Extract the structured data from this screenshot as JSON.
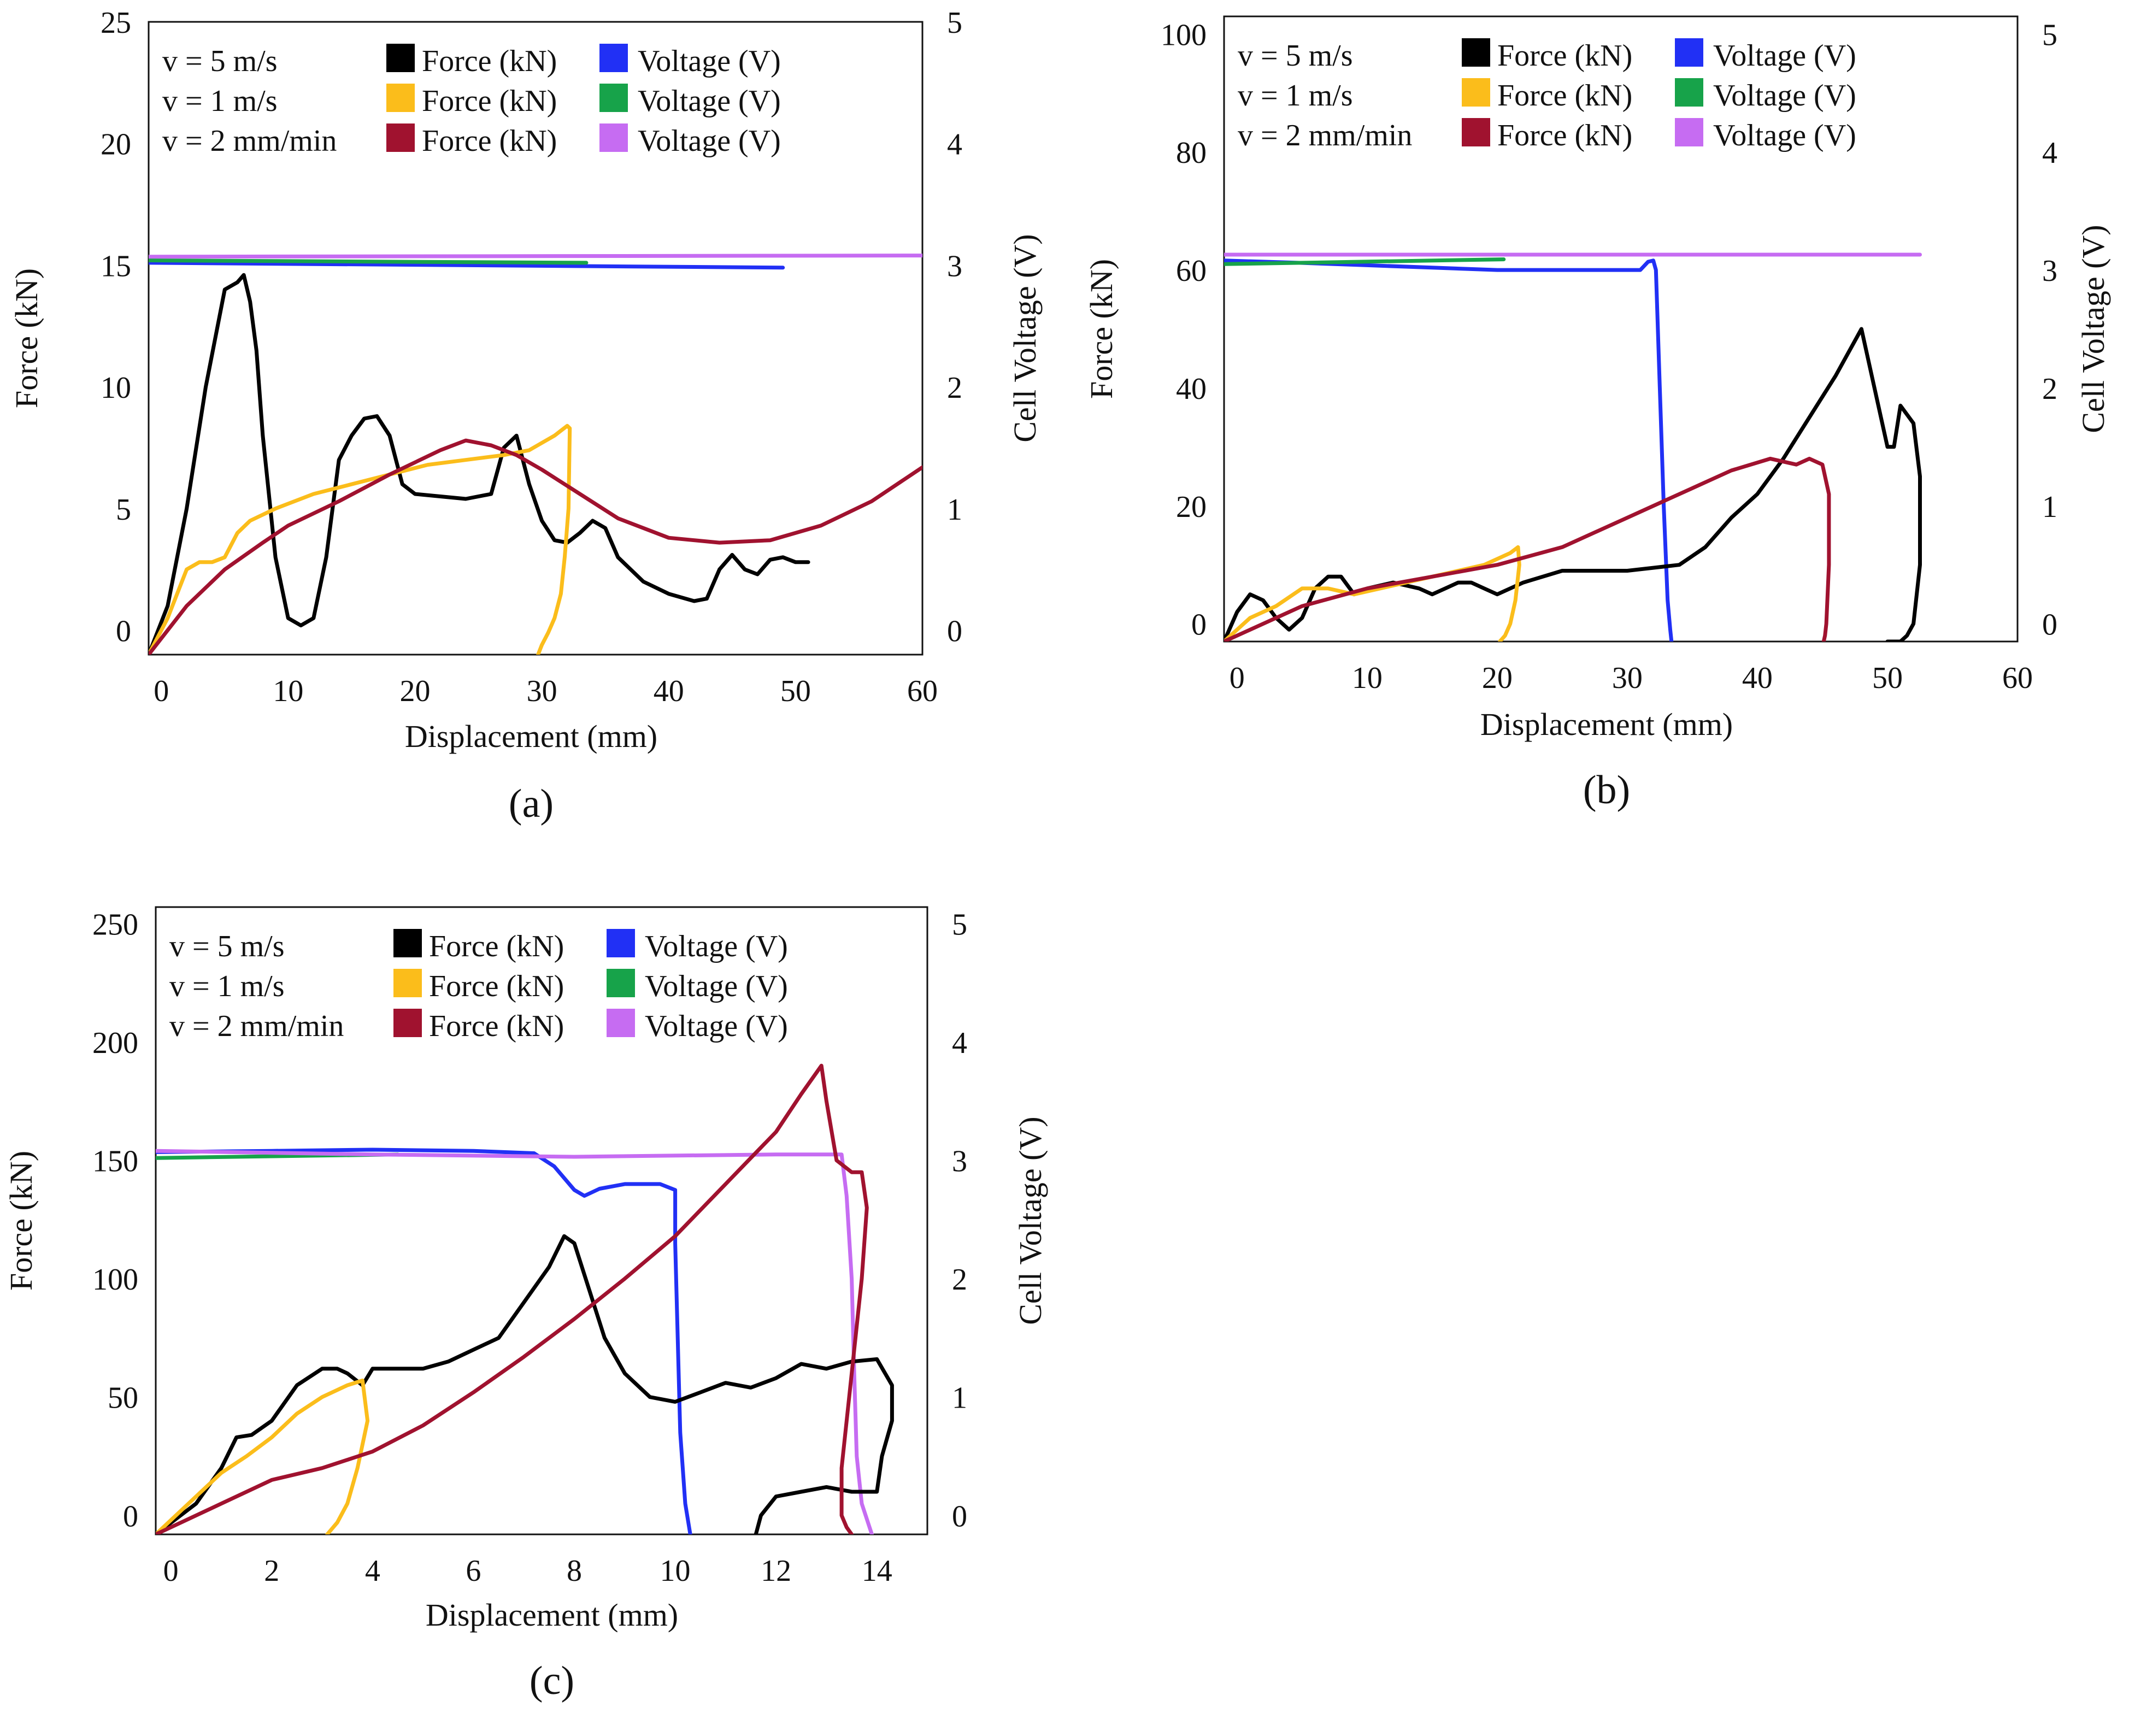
{
  "legend_labels": {
    "speeds": [
      "v = 5 m/s",
      "v = 1 m/s",
      "v = 2 mm/min"
    ],
    "force": "Force (kN)",
    "voltage": "Voltage (V)"
  },
  "colors": {
    "force": [
      "#000000",
      "#fbbd1b",
      "#a0122f"
    ],
    "voltage": [
      "#2130f5",
      "#17a34a",
      "#c66cf2"
    ]
  },
  "chart_data": [
    {
      "type": "line",
      "panel_label": "(a)",
      "xlabel": "Displacement (mm)",
      "ylabel": "Force (kN)",
      "y2label": "Cell Voltage (V)",
      "xlim": [
        -1,
        60
      ],
      "ylim": [
        -1,
        25
      ],
      "y2lim": [
        -0.2,
        5
      ],
      "xticks": [
        0,
        10,
        20,
        30,
        40,
        50,
        60
      ],
      "yticks": [
        0,
        5,
        10,
        15,
        20,
        25
      ],
      "y2ticks": [
        0,
        1,
        2,
        3,
        4,
        5
      ],
      "series": [
        {
          "name": "v = 5 m/s Force (kN)",
          "axis": "left",
          "color": "#000000",
          "x": [
            -1,
            0.5,
            2,
            3.5,
            5,
            6,
            6.5,
            7,
            7.5,
            8,
            9,
            10,
            11,
            12,
            13,
            14,
            15,
            16,
            17,
            18,
            19,
            20,
            22,
            24,
            26,
            27,
            28,
            29,
            30,
            31,
            32,
            33,
            34,
            35,
            36,
            38,
            40,
            42,
            43,
            44,
            45,
            46,
            47,
            48,
            49,
            50,
            51
          ],
          "y": [
            -1,
            1,
            5,
            10,
            14,
            14.3,
            14.6,
            13.5,
            11.5,
            8,
            3,
            0.5,
            0.2,
            0.5,
            3,
            7,
            8,
            8.7,
            8.8,
            8,
            6,
            5.6,
            5.5,
            5.4,
            5.6,
            7.5,
            8,
            6,
            4.5,
            3.7,
            3.6,
            4,
            4.5,
            4.2,
            3,
            2,
            1.5,
            1.2,
            1.3,
            2.5,
            3.1,
            2.5,
            2.3,
            2.9,
            3,
            2.8,
            2.8
          ]
        },
        {
          "name": "v = 1 m/s Force (kN)",
          "axis": "left",
          "color": "#fbbd1b",
          "x": [
            -1,
            0.5,
            2,
            3,
            4,
            5,
            6,
            7,
            9,
            12,
            15,
            18,
            21,
            24,
            27,
            29,
            30,
            31,
            31.5,
            32,
            32.2,
            32.1,
            31.8,
            31.5,
            31,
            30.5,
            30,
            29.7
          ],
          "y": [
            -1,
            0.5,
            2.5,
            2.8,
            2.8,
            3,
            4,
            4.5,
            5,
            5.6,
            6,
            6.4,
            6.8,
            7,
            7.2,
            7.4,
            7.7,
            8,
            8.2,
            8.4,
            8.3,
            5,
            3,
            1.5,
            0.5,
            -0.1,
            -0.6,
            -1
          ]
        },
        {
          "name": "v = 2 mm/min Force (kN)",
          "axis": "left",
          "color": "#a0122f",
          "x": [
            -1,
            2,
            5,
            8,
            10,
            14,
            18,
            22,
            24,
            26,
            28,
            30,
            33,
            36,
            40,
            44,
            48,
            52,
            56,
            60
          ],
          "y": [
            -1,
            1,
            2.5,
            3.6,
            4.3,
            5.3,
            6.4,
            7.4,
            7.8,
            7.6,
            7.2,
            6.6,
            5.6,
            4.6,
            3.8,
            3.6,
            3.7,
            4.3,
            5.3,
            6.7
          ]
        },
        {
          "name": "v = 5 m/s Voltage (V)",
          "axis": "right",
          "color": "#2130f5",
          "x": [
            -1,
            49
          ],
          "y": [
            3.02,
            2.98
          ]
        },
        {
          "name": "v = 1 m/s Voltage (V)",
          "axis": "right",
          "color": "#17a34a",
          "x": [
            -1,
            33.5
          ],
          "y": [
            3.04,
            3.02
          ]
        },
        {
          "name": "v = 2 mm/min Voltage (V)",
          "axis": "right",
          "color": "#c66cf2",
          "x": [
            -1,
            60
          ],
          "y": [
            3.07,
            3.08
          ]
        }
      ]
    },
    {
      "type": "line",
      "panel_label": "(b)",
      "xlabel": "Displacement (mm)",
      "ylabel": "Force (kN)",
      "y2label": "Cell Voltage (V)",
      "xlim": [
        -1,
        60
      ],
      "ylim": [
        -3,
        103
      ],
      "y2lim": [
        -0.15,
        5.15
      ],
      "xticks": [
        0,
        10,
        20,
        30,
        40,
        50,
        60
      ],
      "yticks": [
        0,
        20,
        40,
        60,
        80,
        100
      ],
      "y2ticks": [
        0,
        1,
        2,
        3,
        4,
        5
      ],
      "series": [
        {
          "name": "v = 5 m/s Force (kN)",
          "axis": "left",
          "color": "#000000",
          "x": [
            -1,
            0,
            1,
            2,
            3,
            4,
            5,
            6,
            7,
            8,
            9,
            10,
            12,
            14,
            15,
            16,
            17,
            18,
            19,
            20,
            22,
            25,
            28,
            30,
            32,
            34,
            36,
            38,
            40,
            42,
            44,
            46,
            47,
            48,
            49,
            50,
            50.5,
            51,
            52,
            52.5,
            52.5,
            52,
            51.5,
            51,
            50.5,
            50
          ],
          "y": [
            -3,
            2,
            5,
            4,
            1,
            -1,
            1,
            6,
            8,
            8,
            5,
            6,
            7,
            6,
            5,
            6,
            7,
            7,
            6,
            5,
            7,
            9,
            9,
            9,
            9.5,
            10,
            13,
            18,
            22,
            28,
            35,
            42,
            46,
            50,
            40,
            30,
            30,
            37,
            34,
            25,
            10,
            0,
            -2,
            -3,
            -3,
            -3
          ],
          "note": "approximate"
        },
        {
          "name": "v = 1 m/s Force (kN)",
          "axis": "left",
          "color": "#fbbd1b",
          "x": [
            -1,
            1,
            3,
            5,
            7,
            9,
            11,
            13,
            15,
            17,
            19,
            21,
            21.6,
            21.7,
            21.4,
            21,
            20.6,
            20.2
          ],
          "y": [
            -3,
            1,
            3,
            6,
            6,
            5,
            6,
            7,
            8,
            9,
            10,
            12,
            13,
            10,
            4,
            0,
            -2,
            -3
          ]
        },
        {
          "name": "v = 2 mm/min Force (kN)",
          "axis": "left",
          "color": "#a0122f",
          "x": [
            -1,
            5,
            10,
            15,
            20,
            25,
            30,
            35,
            38,
            41,
            43,
            44,
            45,
            45.5,
            45.5,
            45.3,
            45.2,
            45.1
          ],
          "y": [
            -3,
            3,
            6,
            8,
            10,
            13,
            18,
            23,
            26,
            28,
            27,
            28,
            27,
            22,
            10,
            0,
            -2,
            -3
          ]
        },
        {
          "name": "v = 5 m/s Voltage (V)",
          "axis": "right",
          "color": "#2130f5",
          "x": [
            -1,
            5,
            10,
            15,
            20,
            25,
            28,
            31,
            31.6,
            32,
            32.2,
            32.5,
            32.8,
            33.1,
            33.3,
            33.4
          ],
          "y": [
            3.08,
            3.06,
            3.04,
            3.02,
            3.0,
            3.0,
            3.0,
            3.0,
            3.07,
            3.08,
            3.0,
            2.0,
            1.0,
            0.2,
            -0.05,
            -0.15
          ]
        },
        {
          "name": "v = 1 m/s Voltage (V)",
          "axis": "right",
          "color": "#17a34a",
          "x": [
            -1,
            20.5
          ],
          "y": [
            3.05,
            3.09
          ]
        },
        {
          "name": "v = 2 mm/min Voltage (V)",
          "axis": "right",
          "color": "#c66cf2",
          "x": [
            -1,
            52.5
          ],
          "y": [
            3.13,
            3.13
          ]
        }
      ]
    },
    {
      "type": "line",
      "panel_label": "(c)",
      "xlabel": "Displacement (mm)",
      "ylabel": "Force (kN)",
      "y2label": "Cell Voltage (V)",
      "xlim": [
        -0.3,
        15
      ],
      "ylim": [
        -8,
        257
      ],
      "y2lim": [
        -0.16,
        5.14
      ],
      "xticks": [
        0,
        2,
        4,
        6,
        8,
        10,
        12,
        14
      ],
      "yticks": [
        0,
        50,
        100,
        150,
        200,
        250
      ],
      "y2ticks": [
        0,
        1,
        2,
        3,
        4,
        5
      ],
      "series": [
        {
          "name": "v = 5 m/s Force (kN)",
          "axis": "left",
          "color": "#000000",
          "x": [
            -0.3,
            0.5,
            1,
            1.3,
            1.6,
            2,
            2.5,
            3,
            3.3,
            3.5,
            3.8,
            4,
            4.5,
            5,
            5.5,
            6,
            6.5,
            7,
            7.5,
            7.8,
            8,
            8.3,
            8.6,
            9,
            9.5,
            10,
            10.5,
            11,
            11.5,
            12,
            12.5,
            13,
            13.5,
            14,
            14.3,
            14.3,
            14.1,
            14.0,
            13.5,
            13,
            12.5,
            12,
            11.7,
            11.6
          ],
          "y": [
            -8,
            5,
            20,
            33,
            34,
            40,
            55,
            62,
            62,
            60,
            55,
            62,
            62,
            62,
            65,
            70,
            75,
            90,
            105,
            118,
            115,
            95,
            75,
            60,
            50,
            48,
            52,
            56,
            54,
            58,
            64,
            62,
            65,
            66,
            55,
            40,
            25,
            10,
            10,
            12,
            10,
            8,
            0,
            -8
          ],
          "note": "approximate"
        },
        {
          "name": "v = 1 m/s Force (kN)",
          "axis": "left",
          "color": "#fbbd1b",
          "x": [
            -0.3,
            0.5,
            1,
            1.5,
            2,
            2.5,
            3,
            3.5,
            3.8,
            3.9,
            3.7,
            3.5,
            3.3,
            3.1
          ],
          "y": [
            -8,
            8,
            18,
            25,
            33,
            43,
            50,
            55,
            57,
            40,
            20,
            5,
            -3,
            -8
          ]
        },
        {
          "name": "v = 2 mm/min Force (kN)",
          "axis": "left",
          "color": "#a0122f",
          "x": [
            -0.3,
            1,
            2,
            3,
            4,
            5,
            6,
            7,
            8,
            9,
            10,
            11,
            12,
            12.5,
            12.9,
            13.0,
            13.2,
            13.5,
            13.7,
            13.8,
            13.7,
            13.5,
            13.3,
            13.3,
            13.4,
            13.5
          ],
          "y": [
            -8,
            5,
            15,
            20,
            27,
            38,
            52,
            67,
            83,
            100,
            118,
            140,
            162,
            178,
            190,
            175,
            150,
            145,
            145,
            130,
            100,
            60,
            20,
            0,
            -5,
            -8
          ]
        },
        {
          "name": "v = 5 m/s Voltage (V)",
          "axis": "right",
          "color": "#2130f5",
          "x": [
            -0.3,
            2,
            4,
            6,
            7.2,
            7.6,
            8,
            8.2,
            8.5,
            9,
            9.7,
            10,
            10.0,
            10.05,
            10.1,
            10.2,
            10.3
          ],
          "y": [
            3.07,
            3.08,
            3.09,
            3.08,
            3.06,
            2.95,
            2.75,
            2.7,
            2.76,
            2.8,
            2.8,
            2.75,
            2.3,
            1.5,
            0.7,
            0.1,
            -0.16
          ]
        },
        {
          "name": "v = 1 m/s Voltage (V)",
          "axis": "right",
          "color": "#17a34a",
          "x": [
            -0.3,
            4.5
          ],
          "y": [
            3.02,
            3.05
          ]
        },
        {
          "name": "v = 2 mm/min Voltage (V)",
          "axis": "right",
          "color": "#c66cf2",
          "x": [
            -0.3,
            4,
            8,
            12,
            13.3,
            13.4,
            13.5,
            13.55,
            13.6,
            13.7,
            13.9
          ],
          "y": [
            3.08,
            3.05,
            3.03,
            3.05,
            3.05,
            2.7,
            2.0,
            1.2,
            0.5,
            0.1,
            -0.16
          ]
        }
      ]
    }
  ]
}
